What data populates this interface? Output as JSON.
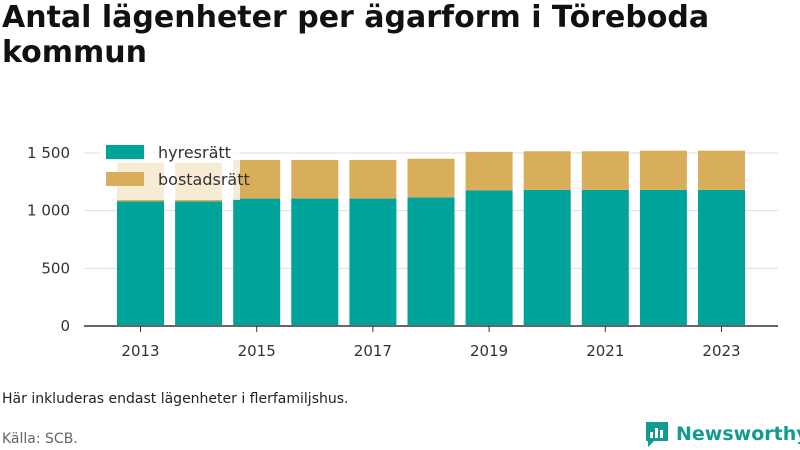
{
  "title": "Antal lägenheter per ägarform i Töreboda kommun",
  "note": "Här inkluderas endast lägenheter i flerfamiljshus.",
  "source": "Källa: SCB.",
  "brand": {
    "name": "Newsworthy",
    "icon": "newsworthy-logo-icon"
  },
  "colors": {
    "hyresratt": "#00a39a",
    "bostadsratt": "#d9ae5a",
    "grid": "#dddddd",
    "axis": "#333333"
  },
  "chart_data": {
    "type": "bar",
    "stacked": true,
    "categories": [
      "2013",
      "2014",
      "2015",
      "2016",
      "2017",
      "2018",
      "2019",
      "2020",
      "2021",
      "2022",
      "2023"
    ],
    "x_tick_labels": [
      "2013",
      "2015",
      "2017",
      "2019",
      "2021",
      "2023"
    ],
    "series": [
      {
        "name": "hyresrätt",
        "values": [
          1080,
          1080,
          1105,
          1105,
          1105,
          1115,
          1175,
          1180,
          1180,
          1180,
          1180
        ]
      },
      {
        "name": "bostadsrätt",
        "values": [
          335,
          335,
          335,
          335,
          335,
          335,
          335,
          335,
          335,
          340,
          340
        ]
      }
    ],
    "ylim": [
      0,
      1500
    ],
    "y_ticks": [
      0,
      500,
      1000,
      1500
    ],
    "y_tick_labels": [
      "0",
      "500",
      "1 000",
      "1 500"
    ],
    "grid": true,
    "legend": "top-left"
  }
}
